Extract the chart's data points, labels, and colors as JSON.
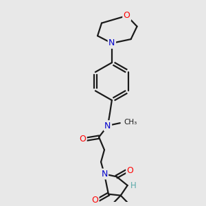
{
  "bg_color": "#e8e8e8",
  "bond_color": "#1a1a1a",
  "atom_colors": {
    "O": "#ff0000",
    "N": "#0000cc",
    "H": "#5aaaaa",
    "C": "#1a1a1a"
  },
  "fig_size": [
    3.0,
    3.0
  ],
  "dpi": 100,
  "lw": 1.6
}
